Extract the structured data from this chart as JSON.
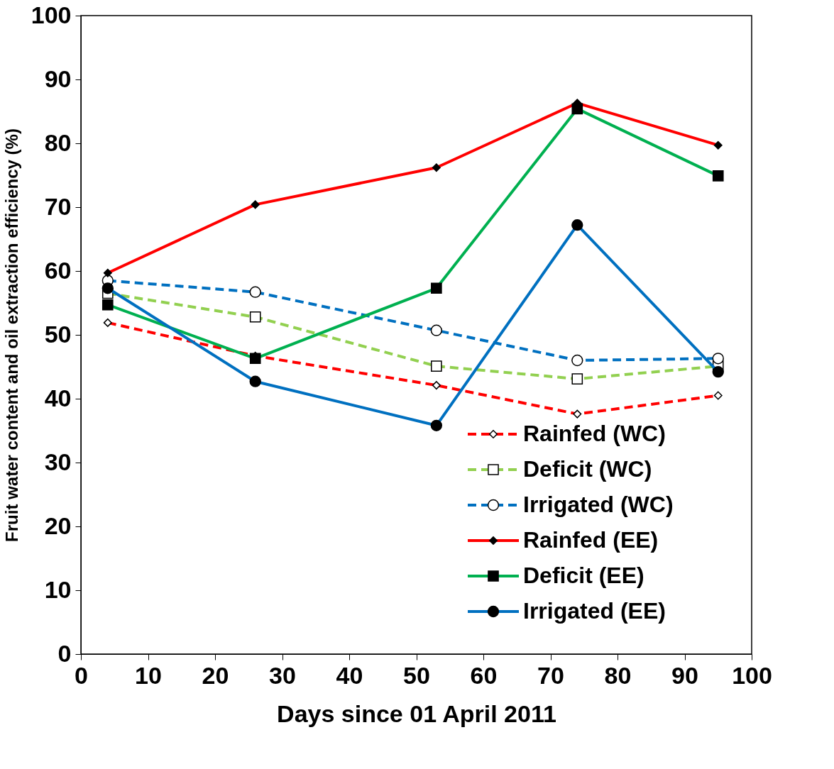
{
  "chart_data": {
    "type": "line",
    "xlabel": "Days since 01 April 2011",
    "ylabel": "Fruit water content and oil extraction efficiency  (%)",
    "x": [
      4,
      26,
      53,
      74,
      95
    ],
    "xlim": [
      0,
      100
    ],
    "xticks": [
      0,
      10,
      20,
      30,
      40,
      50,
      60,
      70,
      80,
      90,
      100
    ],
    "ylim": [
      0,
      100
    ],
    "yticks": [
      0,
      10,
      20,
      30,
      40,
      50,
      60,
      70,
      80,
      90,
      100
    ],
    "grid": false,
    "legend": "bottom right",
    "series": [
      {
        "name": "Rainfed (WC)",
        "color": "#ff0000",
        "line_style": "dashed",
        "marker": "diamond",
        "values": [
          51.9,
          46.7,
          42.1,
          37.6,
          40.5
        ]
      },
      {
        "name": "Deficit (WC)",
        "color": "#92d050",
        "line_style": "dashed",
        "marker": "square",
        "values": [
          56.5,
          52.8,
          45.1,
          43.1,
          45.1
        ]
      },
      {
        "name": "Irrigated (WC)",
        "color": "#0070c0",
        "line_style": "dashed",
        "marker": "circle",
        "values": [
          58.5,
          56.7,
          50.7,
          46.0,
          46.3
        ]
      },
      {
        "name": "Rainfed (EE)",
        "color": "#ff0000",
        "line_style": "solid",
        "marker": "diamond",
        "values": [
          59.7,
          70.4,
          76.2,
          86.3,
          79.7
        ]
      },
      {
        "name": "Deficit (EE)",
        "color": "#00b050",
        "line_style": "solid",
        "marker": "square",
        "values": [
          54.7,
          46.3,
          57.3,
          85.4,
          74.9
        ]
      },
      {
        "name": "Irrigated (EE)",
        "color": "#0070c0",
        "line_style": "solid",
        "marker": "circle",
        "values": [
          57.3,
          42.7,
          35.8,
          67.2,
          44.2
        ]
      }
    ]
  }
}
